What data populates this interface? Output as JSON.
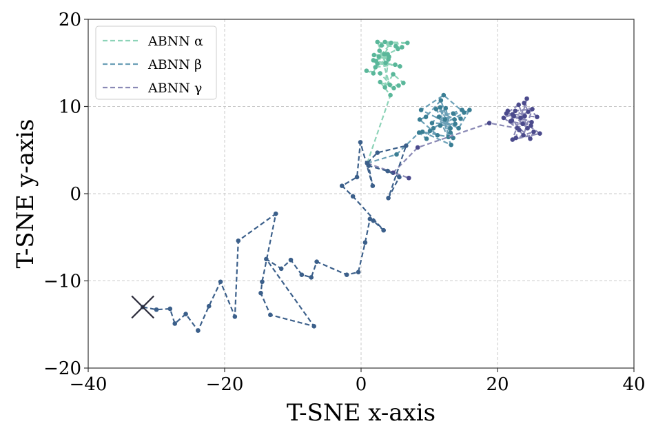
{
  "chart_data": {
    "type": "line",
    "title": "",
    "xlabel": "T-SNE x-axis",
    "ylabel": "T-SNE y-axis",
    "xlim": [
      -40,
      40
    ],
    "ylim": [
      -20,
      20
    ],
    "xticks": [
      -40,
      -20,
      0,
      20,
      40
    ],
    "yticks": [
      -20,
      -10,
      0,
      10,
      20
    ],
    "xtick_labels": [
      "−40",
      "−20",
      "0",
      "20",
      "40"
    ],
    "ytick_labels": [
      "−20",
      "−10",
      "0",
      "10",
      "20"
    ],
    "grid": true,
    "legend_position": "top-left",
    "start_marker": {
      "x": -32,
      "y": -13
    },
    "shared_path": {
      "color": "#3b5f8a",
      "points": [
        [
          -32,
          -13
        ],
        [
          -30,
          -13.3
        ],
        [
          -28,
          -13.2
        ],
        [
          -27.3,
          -14.9
        ],
        [
          -25.7,
          -13.8
        ],
        [
          -23.9,
          -15.7
        ],
        [
          -22.3,
          -12.9
        ],
        [
          -20.6,
          -10.1
        ],
        [
          -18.5,
          -14.1
        ],
        [
          -18,
          -5.4
        ],
        [
          -12.5,
          -2.3
        ],
        [
          -14.5,
          -10.1
        ],
        [
          -14.7,
          -11.4
        ],
        [
          -13.3,
          -13.9
        ],
        [
          -6.9,
          -15.2
        ],
        [
          -13.9,
          -7.5
        ],
        [
          -11.7,
          -8.6
        ],
        [
          -10.3,
          -7.6
        ],
        [
          -8.7,
          -9.3
        ],
        [
          -7.3,
          -9.6
        ],
        [
          -6.5,
          -7.8
        ],
        [
          -2.1,
          -9.3
        ],
        [
          -0.4,
          -9.0
        ],
        [
          0.6,
          -5.6
        ],
        [
          1.3,
          -2.9
        ],
        [
          1.8,
          -3.1
        ],
        [
          3.3,
          -4.2
        ],
        [
          -1.2,
          -0.3
        ],
        [
          -2.8,
          0.9
        ],
        [
          -0.6,
          1.9
        ],
        [
          -0.1,
          5.9
        ],
        [
          1.7,
          0.9
        ],
        [
          1.1,
          3.2
        ],
        [
          3.9,
          2.6
        ],
        [
          5.6,
          1.9
        ],
        [
          4.0,
          -0.5
        ],
        [
          6.6,
          5.5
        ],
        [
          2.4,
          4.7
        ],
        [
          0.9,
          3.5
        ]
      ]
    },
    "series": [
      {
        "name": "ABNN α",
        "color": "#5ab79a",
        "line_color": "#8dd3b8",
        "points": [
          [
            0.9,
            3.5
          ],
          [
            4.3,
            11.3
          ],
          [
            2.8,
            12.8
          ],
          [
            4.8,
            12.1
          ],
          [
            2.8,
            13.8
          ],
          [
            0.8,
            14.1
          ],
          [
            1.8,
            13.8
          ],
          [
            2.1,
            14.5
          ],
          [
            5.0,
            14.8
          ],
          [
            2.4,
            14.9
          ],
          [
            1.8,
            15.3
          ],
          [
            4.1,
            15.7
          ],
          [
            1.9,
            15.9
          ],
          [
            3.9,
            16.0
          ],
          [
            5.4,
            16.6
          ],
          [
            6.0,
            16.8
          ],
          [
            3.0,
            17.0
          ],
          [
            6.8,
            17.3
          ],
          [
            3.5,
            17.4
          ],
          [
            5.1,
            16.9
          ],
          [
            2.4,
            17.4
          ],
          [
            3.6,
            15.0
          ],
          [
            2.7,
            16.4
          ],
          [
            4.2,
            12.5
          ],
          [
            5.5,
            12.4
          ],
          [
            6.2,
            12.7
          ],
          [
            4.7,
            13.7
          ],
          [
            3.5,
            12.2
          ],
          [
            4.0,
            15.4
          ],
          [
            2.6,
            15.7
          ],
          [
            3.4,
            16.0
          ],
          [
            4.4,
            17.3
          ],
          [
            2.2,
            15.2
          ],
          [
            5.7,
            14.6
          ]
        ]
      },
      {
        "name": "ABNN β",
        "color": "#3a7e94",
        "line_color": "#6a9fb6",
        "points": [
          [
            0.9,
            3.5
          ],
          [
            5.2,
            4.5
          ],
          [
            8.5,
            7.0
          ],
          [
            9.6,
            6.3
          ],
          [
            10.1,
            7.2
          ],
          [
            11.2,
            6.7
          ],
          [
            8.6,
            8.5
          ],
          [
            9.5,
            8.8
          ],
          [
            11.7,
            10.7
          ],
          [
            13.1,
            7.5
          ],
          [
            11.6,
            9.9
          ],
          [
            12.8,
            6.5
          ],
          [
            12.3,
            8.5
          ],
          [
            13.1,
            7.0
          ],
          [
            11.0,
            9.7
          ],
          [
            13.7,
            8.5
          ],
          [
            13.5,
            9.2
          ],
          [
            14.6,
            8.6
          ],
          [
            15.1,
            9.3
          ],
          [
            12.1,
            11.3
          ],
          [
            8.8,
            9.6
          ],
          [
            14.3,
            7.5
          ],
          [
            15.9,
            9.6
          ],
          [
            11.6,
            7.8
          ],
          [
            13.8,
            8.0
          ],
          [
            10.4,
            8.1
          ],
          [
            12.4,
            9.8
          ],
          [
            13.5,
            6.4
          ],
          [
            9.0,
            7.1
          ],
          [
            13.2,
            5.6
          ],
          [
            11.4,
            8.8
          ],
          [
            14.8,
            9.6
          ],
          [
            10.6,
            7.5
          ]
        ]
      },
      {
        "name": "ABNN γ",
        "color": "#4b4a8c",
        "line_color": "#8a89b5",
        "points": [
          [
            0.9,
            3.5
          ],
          [
            7.0,
            1.8
          ],
          [
            4.7,
            2.4
          ],
          [
            8.3,
            5.3
          ],
          [
            18.8,
            8.1
          ],
          [
            22.9,
            7.5
          ],
          [
            20.9,
            8.7
          ],
          [
            22.2,
            9.1
          ],
          [
            23.7,
            8.0
          ],
          [
            24.4,
            7.5
          ],
          [
            23.1,
            10.2
          ],
          [
            21.3,
            9.2
          ],
          [
            25.8,
            8.8
          ],
          [
            23.9,
            10.4
          ],
          [
            24.5,
            9.4
          ],
          [
            22.1,
            8.4
          ],
          [
            24.8,
            6.3
          ],
          [
            25.3,
            7.1
          ],
          [
            22.7,
            6.4
          ],
          [
            24.3,
            10.9
          ],
          [
            22.2,
            6.2
          ],
          [
            26.2,
            6.9
          ],
          [
            21.5,
            9.5
          ],
          [
            23.2,
            7.3
          ],
          [
            23.4,
            8.7
          ],
          [
            25.0,
            8.2
          ],
          [
            22.4,
            8.9
          ],
          [
            24.9,
            7.8
          ],
          [
            21.9,
            8.3
          ],
          [
            23.8,
            6.7
          ],
          [
            25.1,
            9.7
          ],
          [
            22.6,
            9.5
          ],
          [
            24.0,
            8.9
          ]
        ]
      }
    ]
  }
}
